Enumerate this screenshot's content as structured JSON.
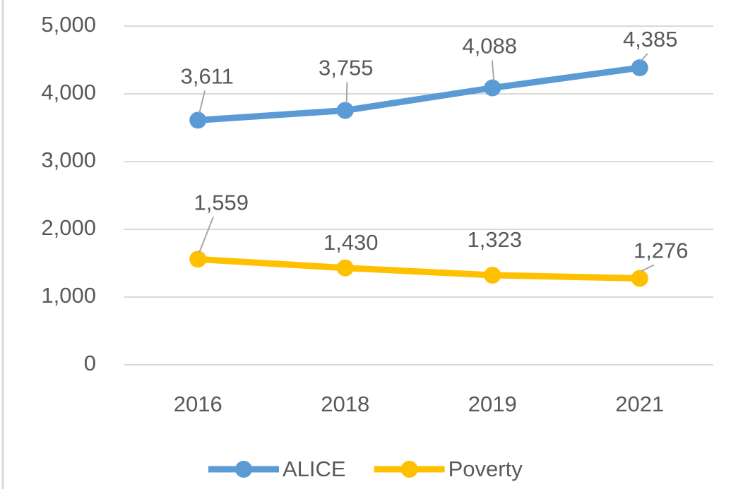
{
  "chart_data": {
    "type": "line",
    "categories": [
      "2016",
      "2018",
      "2019",
      "2021"
    ],
    "series": [
      {
        "name": "ALICE",
        "color": "#5b9bd5",
        "values": [
          3611,
          3755,
          4088,
          4385
        ],
        "value_labels": [
          "3,611",
          "3,755",
          "4,088",
          "4,385"
        ]
      },
      {
        "name": "Poverty",
        "color": "#ffc000",
        "values": [
          1559,
          1430,
          1323,
          1276
        ],
        "value_labels": [
          "1,559",
          "1,430",
          "1,323",
          "1,276"
        ]
      }
    ],
    "ylim": [
      0,
      5000
    ],
    "yticks": [
      0,
      {
        "value": 1000,
        "label": "1,000"
      },
      {
        "value": 2000,
        "label": "2,000"
      },
      {
        "value": 3000,
        "label": "3,000"
      },
      {
        "value": 4000,
        "label": "4,000"
      },
      {
        "value": 5000,
        "label": "5,000"
      }
    ],
    "grid": true,
    "legend": "bottom"
  }
}
